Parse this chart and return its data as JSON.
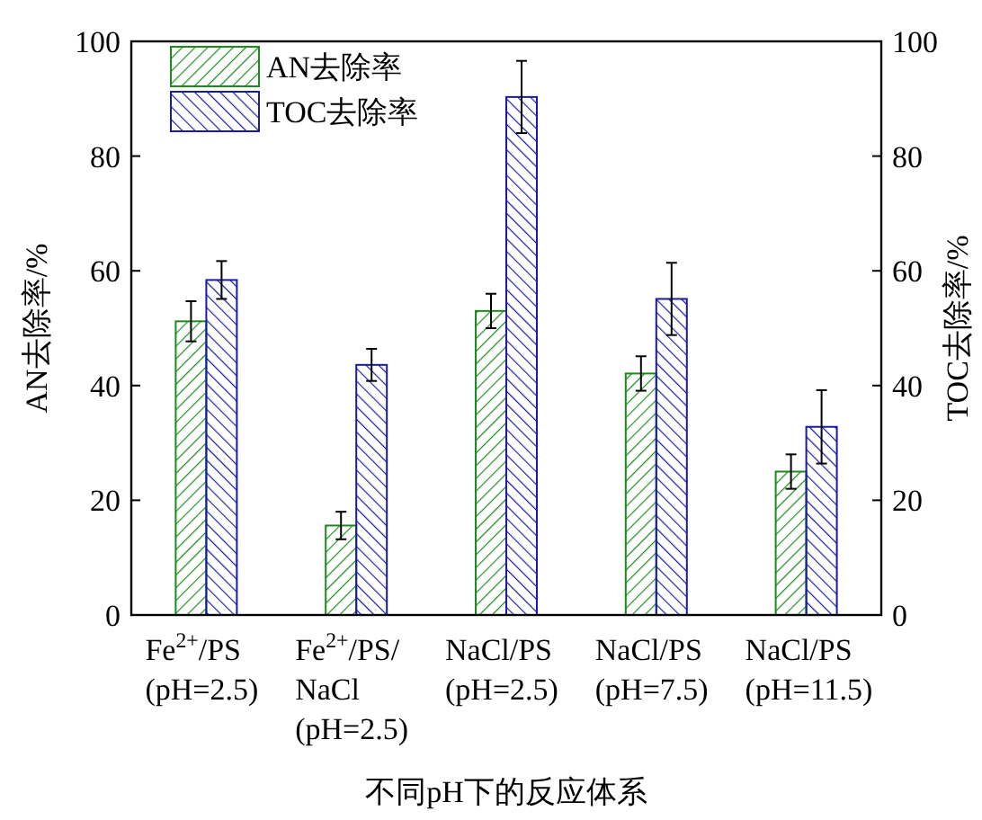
{
  "chart_data": {
    "type": "bar",
    "xlabel": "不同pH下的反应体系",
    "ylabel": "AN去除率/%",
    "y2label": "TOC去除率/%",
    "categories": [
      "Fe$^{2+}$/PS\n(pH=2.5)",
      "Fe$^{2+}$/PS/\nNaCl\n(pH=2.5)",
      "NaCl/PS\n(pH=2.5)",
      "NaCl/PS\n(pH=7.5)",
      "NaCl/PS\n(pH=11.5)"
    ],
    "series": [
      {
        "name": "AN去除率",
        "color": "#1a8c1a",
        "values": [
          51.2,
          15.6,
          53,
          42.1,
          25
        ],
        "errors": [
          3.5,
          2.4,
          3,
          3,
          3
        ]
      },
      {
        "name": "TOC去除率",
        "color": "#1a1aa6",
        "values": [
          58.4,
          43.6,
          90.3,
          55.1,
          32.8
        ],
        "errors": [
          3.3,
          2.8,
          6.3,
          6.3,
          6.4
        ]
      }
    ],
    "ylim": [
      0,
      100
    ],
    "yticks": [
      0,
      20,
      40,
      60,
      80,
      100
    ],
    "y2lim": [
      0,
      100
    ],
    "y2ticks": [
      0,
      20,
      40,
      60,
      80,
      100
    ],
    "legend": "top left",
    "grid": false
  }
}
